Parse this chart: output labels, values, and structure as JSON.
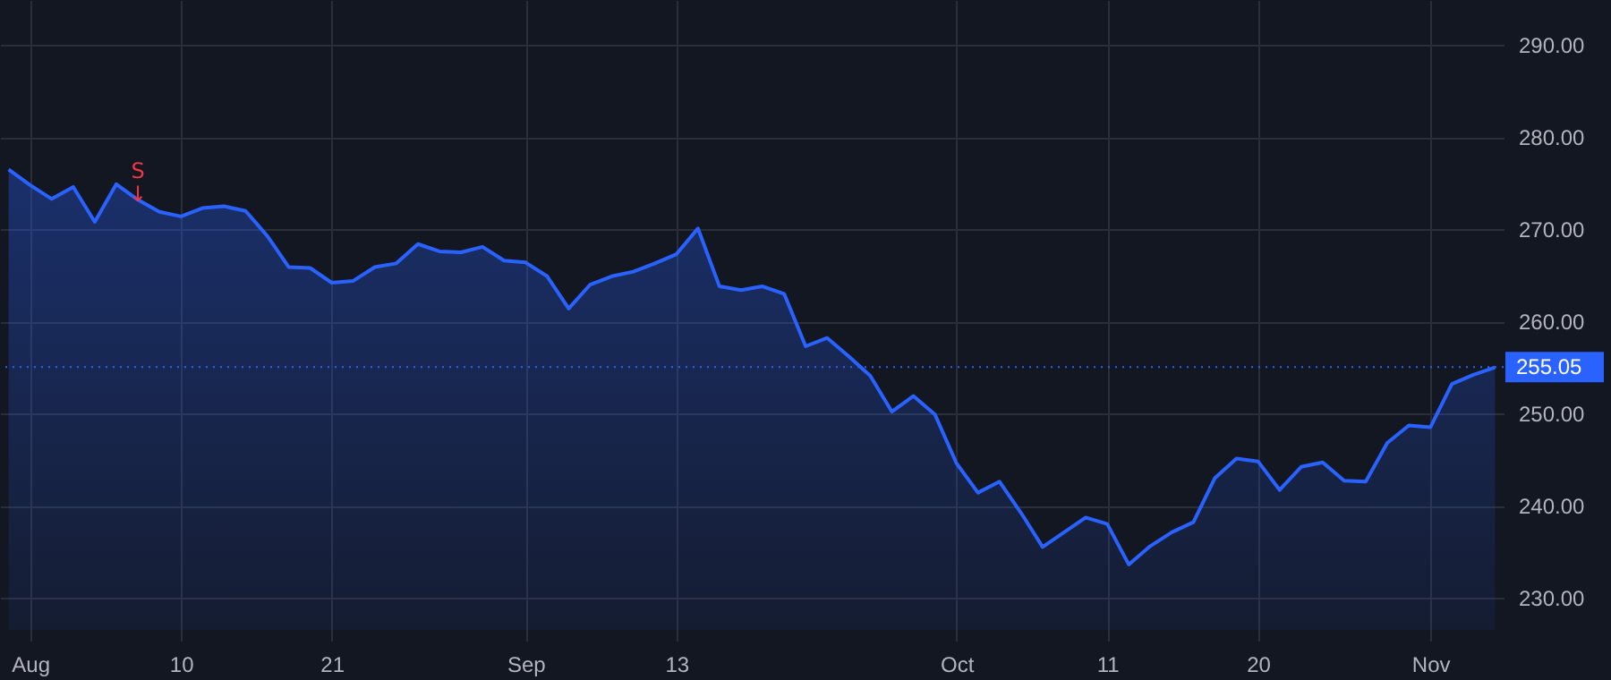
{
  "chart_data": {
    "type": "area",
    "categories": [
      null,
      "Aug",
      null,
      null,
      null,
      null,
      null,
      null,
      "10",
      null,
      null,
      null,
      null,
      null,
      null,
      "21",
      null,
      null,
      null,
      null,
      null,
      null,
      null,
      null,
      "Sep",
      null,
      null,
      null,
      null,
      null,
      null,
      "13",
      null,
      null,
      null,
      null,
      null,
      null,
      null,
      null,
      null,
      null,
      null,
      null,
      "Oct",
      null,
      null,
      null,
      null,
      null,
      null,
      "11",
      null,
      null,
      null,
      null,
      null,
      null,
      "20",
      null,
      null,
      null,
      null,
      null,
      null,
      null,
      "Nov",
      null,
      null,
      null
    ],
    "values": [
      276.5,
      274.8,
      273.3,
      274.6,
      270.8,
      274.9,
      273.2,
      271.9,
      271.4,
      272.3,
      272.5,
      272.0,
      269.3,
      265.9,
      265.8,
      264.2,
      264.4,
      265.9,
      266.3,
      268.4,
      267.6,
      267.5,
      268.1,
      266.6,
      266.4,
      264.9,
      261.4,
      264.0,
      264.9,
      265.4,
      266.3,
      267.3,
      270.1,
      263.8,
      263.4,
      263.8,
      263.0,
      257.3,
      258.2,
      256.2,
      254.1,
      250.2,
      251.9,
      249.9,
      244.6,
      241.4,
      242.6,
      239.2,
      235.5,
      237.1,
      238.7,
      238.0,
      233.6,
      235.6,
      237.1,
      238.2,
      243.0,
      245.1,
      244.8,
      241.7,
      244.2,
      244.7,
      242.7,
      242.6,
      246.8,
      248.7,
      248.5,
      253.2,
      254.2,
      255.0
    ],
    "color": "#2962ff",
    "ylim": [
      226.5,
      294.9
    ],
    "yticks": [
      {
        "value": 230,
        "label": "230.00"
      },
      {
        "value": 240,
        "label": "240.00"
      },
      {
        "value": 250,
        "label": "250.00"
      },
      {
        "value": 260,
        "label": "260.00"
      },
      {
        "value": 270,
        "label": "270.00"
      },
      {
        "value": 280,
        "label": "280.00"
      },
      {
        "value": 290,
        "label": "290.00"
      }
    ],
    "grid": true,
    "ref_lines": [
      {
        "axis": "y",
        "value": 255.05,
        "label": "255.05",
        "color": "#2962ff",
        "line_style": "dotted"
      }
    ],
    "annotations": [
      {
        "text": "S\n↓",
        "y": 273.2
      }
    ]
  }
}
